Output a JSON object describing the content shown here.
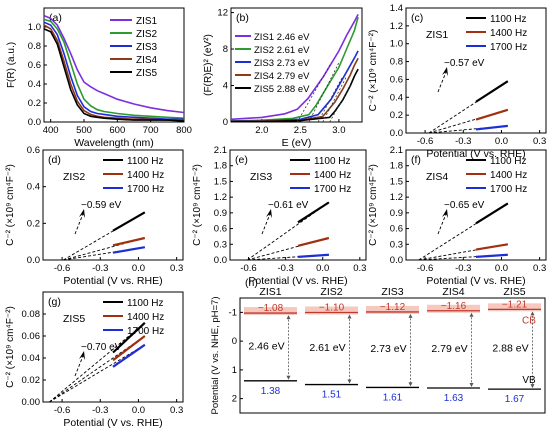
{
  "figure": {
    "colors": {
      "zis1": "#7b2fe0",
      "zis2": "#2f9a2f",
      "zis3": "#1c2fd6",
      "zis4": "#8b3a1a",
      "zis5": "#000000",
      "hz1100": "#000000",
      "hz1400": "#a0300f",
      "hz1700": "#1c2fd6",
      "cb_fill": "#f6c9c0",
      "cb_value": "#c0392b",
      "vb_value": "#1c2fd6"
    }
  },
  "chart_data": [
    {
      "panel": "(a)",
      "type": "line",
      "xlabel": "Wavelength (nm)",
      "ylabel": "F(R) (a.u.)",
      "xlim": [
        380,
        800
      ],
      "ylim": [
        0,
        1.2
      ],
      "xticks": [
        "400",
        "500",
        "600",
        "700",
        "800"
      ],
      "yticks": [
        "0.0",
        "0.2",
        "0.4",
        "0.6",
        "0.8",
        "1.0"
      ],
      "legend_position": "top-right",
      "series": [
        {
          "name": "ZIS1",
          "x": [
            380,
            400,
            420,
            440,
            460,
            480,
            500,
            520,
            540,
            560,
            600,
            650,
            700,
            750,
            800
          ],
          "y": [
            1.12,
            1.09,
            1.02,
            0.88,
            0.72,
            0.55,
            0.42,
            0.37,
            0.33,
            0.3,
            0.24,
            0.19,
            0.15,
            0.12,
            0.1
          ]
        },
        {
          "name": "ZIS2",
          "x": [
            380,
            400,
            420,
            440,
            460,
            480,
            500,
            520,
            540,
            560,
            600,
            650,
            700,
            750,
            800
          ],
          "y": [
            1.08,
            1.06,
            0.98,
            0.84,
            0.62,
            0.4,
            0.24,
            0.17,
            0.13,
            0.11,
            0.09,
            0.07,
            0.06,
            0.05,
            0.04
          ]
        },
        {
          "name": "ZIS3",
          "x": [
            380,
            400,
            420,
            440,
            460,
            480,
            500,
            520,
            540,
            560,
            600,
            650,
            700,
            750,
            800
          ],
          "y": [
            1.05,
            1.02,
            0.92,
            0.72,
            0.48,
            0.28,
            0.16,
            0.11,
            0.09,
            0.08,
            0.06,
            0.05,
            0.04,
            0.03,
            0.03
          ]
        },
        {
          "name": "ZIS4",
          "x": [
            380,
            400,
            420,
            440,
            460,
            480,
            500,
            520,
            540,
            560,
            600,
            650,
            700,
            750,
            800
          ],
          "y": [
            1.02,
            0.98,
            0.86,
            0.64,
            0.4,
            0.22,
            0.12,
            0.08,
            0.06,
            0.05,
            0.04,
            0.03,
            0.03,
            0.02,
            0.02
          ]
        },
        {
          "name": "ZIS5",
          "x": [
            380,
            400,
            420,
            440,
            460,
            480,
            500,
            520,
            540,
            560,
            600,
            650,
            700,
            750,
            800
          ],
          "y": [
            0.98,
            0.95,
            0.82,
            0.58,
            0.34,
            0.18,
            0.09,
            0.06,
            0.05,
            0.04,
            0.03,
            0.02,
            0.02,
            0.02,
            0.01
          ]
        }
      ]
    },
    {
      "panel": "(b)",
      "type": "line",
      "xlabel": "E (eV)",
      "ylabel": "(F(R)E)² (eV²)",
      "xlim": [
        1.6,
        3.3
      ],
      "ylim": [
        0,
        12.5
      ],
      "xticks": [
        "2.0",
        "2.5",
        "3.0"
      ],
      "yticks": [
        "0",
        "4",
        "8",
        "12"
      ],
      "legend_position": "top-left",
      "series": [
        {
          "name": "ZIS1 2.46 eV",
          "x": [
            1.6,
            2.0,
            2.3,
            2.46,
            2.6,
            2.8,
            3.0,
            3.1,
            3.2,
            3.25
          ],
          "y": [
            0.3,
            0.5,
            0.9,
            1.4,
            2.6,
            5.0,
            7.8,
            9.5,
            11.0,
            11.8
          ]
        },
        {
          "name": "ZIS2 2.61 eV",
          "x": [
            1.6,
            2.0,
            2.4,
            2.61,
            2.7,
            2.8,
            3.0,
            3.1,
            3.2,
            3.25
          ],
          "y": [
            0.1,
            0.2,
            0.4,
            0.8,
            1.8,
            3.2,
            6.0,
            8.0,
            10.0,
            11.5
          ]
        },
        {
          "name": "ZIS3 2.73 eV",
          "x": [
            1.6,
            2.0,
            2.5,
            2.73,
            2.8,
            2.9,
            3.0,
            3.1,
            3.2,
            3.25
          ],
          "y": [
            0.1,
            0.1,
            0.3,
            0.8,
            1.5,
            2.5,
            4.0,
            5.5,
            7.0,
            7.8
          ]
        },
        {
          "name": "ZIS4 2.79 eV",
          "x": [
            1.6,
            2.0,
            2.5,
            2.79,
            2.85,
            2.95,
            3.05,
            3.15,
            3.2,
            3.25
          ],
          "y": [
            0.05,
            0.1,
            0.2,
            0.6,
            1.2,
            2.2,
            3.6,
            5.2,
            6.2,
            7.0
          ]
        },
        {
          "name": "ZIS5 2.88 eV",
          "x": [
            1.6,
            2.0,
            2.5,
            2.88,
            2.95,
            3.05,
            3.15,
            3.2,
            3.25
          ],
          "y": [
            0.05,
            0.05,
            0.15,
            0.5,
            1.2,
            2.4,
            4.0,
            5.0,
            5.8
          ]
        }
      ]
    },
    {
      "panel": "(c)",
      "type": "line",
      "sample": "ZIS1",
      "annotation": "−0.57 eV",
      "intercept": -0.57,
      "xlabel": "Potential (V vs. RHE)",
      "ylabel": "C⁻² (×10⁹ cm⁴F⁻²)",
      "xlim": [
        -0.75,
        0.35
      ],
      "ylim": [
        0,
        1.4
      ],
      "xticks": [
        "-0.6",
        "-0.3",
        "0.0",
        "0.3"
      ],
      "yticks": [
        "0.0",
        "0.2",
        "0.4",
        "0.6",
        "0.8",
        "1.0",
        "1.2",
        "1.4"
      ],
      "legend_position": "top-right",
      "series": [
        {
          "name": "1100 Hz",
          "x": [
            -0.2,
            0.05
          ],
          "y": [
            0.35,
            0.58
          ]
        },
        {
          "name": "1400 Hz",
          "x": [
            -0.2,
            0.05
          ],
          "y": [
            0.15,
            0.26
          ]
        },
        {
          "name": "1700 Hz",
          "x": [
            -0.2,
            0.05
          ],
          "y": [
            0.04,
            0.08
          ]
        }
      ]
    },
    {
      "panel": "(d)",
      "type": "line",
      "sample": "ZIS2",
      "annotation": "−0.59 eV",
      "intercept": -0.59,
      "xlabel": "Potential (V vs. RHE)",
      "ylabel": "C⁻² (×10⁹ cm⁴F⁻²)",
      "xlim": [
        -0.75,
        0.35
      ],
      "ylim": [
        0,
        0.6
      ],
      "xticks": [
        "-0.6",
        "-0.3",
        "0.0",
        "0.3"
      ],
      "yticks": [
        "0.0",
        "0.2",
        "0.4",
        "0.6"
      ],
      "legend_position": "top-right",
      "series": [
        {
          "name": "1100 Hz",
          "x": [
            -0.2,
            0.05
          ],
          "y": [
            0.16,
            0.26
          ]
        },
        {
          "name": "1400 Hz",
          "x": [
            -0.2,
            0.05
          ],
          "y": [
            0.08,
            0.12
          ]
        },
        {
          "name": "1700 Hz",
          "x": [
            -0.2,
            0.05
          ],
          "y": [
            0.04,
            0.07
          ]
        }
      ]
    },
    {
      "panel": "(e)",
      "type": "line",
      "sample": "ZIS3",
      "annotation": "−0.61 eV",
      "intercept": -0.61,
      "xlabel": "Potential (V vs. RHE)",
      "ylabel": "C⁻² (×10⁹ cm⁴F⁻²)",
      "xlim": [
        -0.75,
        0.35
      ],
      "ylim": [
        0,
        2.1
      ],
      "xticks": [
        "-0.6",
        "-0.3",
        "0.0",
        "0.3"
      ],
      "yticks": [
        "0.0",
        "0.3",
        "0.6",
        "0.9",
        "1.2",
        "1.5",
        "1.8",
        "2.1"
      ],
      "legend_position": "top-right",
      "series": [
        {
          "name": "1100 Hz",
          "x": [
            -0.2,
            0.05
          ],
          "y": [
            0.72,
            1.1
          ]
        },
        {
          "name": "1400 Hz",
          "x": [
            -0.2,
            0.05
          ],
          "y": [
            0.27,
            0.42
          ]
        },
        {
          "name": "1700 Hz",
          "x": [
            -0.2,
            0.05
          ],
          "y": [
            0.06,
            0.1
          ]
        }
      ]
    },
    {
      "panel": "(f)",
      "type": "line",
      "sample": "ZIS4",
      "annotation": "−0.65 eV",
      "intercept": -0.65,
      "xlabel": "Potential (V vs. RHE)",
      "ylabel": "C⁻² (×10⁹ cm⁴F⁻²)",
      "xlim": [
        -0.75,
        0.35
      ],
      "ylim": [
        0,
        2.1
      ],
      "xticks": [
        "-0.6",
        "-0.3",
        "0.0",
        "0.3"
      ],
      "yticks": [
        "0.0",
        "0.3",
        "0.6",
        "0.9",
        "1.2",
        "1.5",
        "1.8",
        "2.1"
      ],
      "legend_position": "top-right",
      "series": [
        {
          "name": "1100 Hz",
          "x": [
            -0.2,
            0.05
          ],
          "y": [
            0.7,
            1.08
          ]
        },
        {
          "name": "1400 Hz",
          "x": [
            -0.2,
            0.05
          ],
          "y": [
            0.2,
            0.3
          ]
        },
        {
          "name": "1700 Hz",
          "x": [
            -0.2,
            0.05
          ],
          "y": [
            0.06,
            0.1
          ]
        }
      ]
    },
    {
      "panel": "(g)",
      "type": "line",
      "sample": "ZIS5",
      "annotation": "−0.70 eV",
      "intercept": -0.7,
      "xlabel": "Potential (V vs. RHE)",
      "ylabel": "C⁻² (×10⁹ cm⁴F⁻²)",
      "xlim": [
        -0.75,
        0.35
      ],
      "ylim": [
        0,
        0.1
      ],
      "xticks": [
        "-0.6",
        "-0.3",
        "0.0",
        "0.3"
      ],
      "yticks": [
        "0.00",
        "0.02",
        "0.04",
        "0.06",
        "0.08"
      ],
      "legend_position": "top-right",
      "series": [
        {
          "name": "1100 Hz",
          "x": [
            -0.2,
            0.05
          ],
          "y": [
            0.045,
            0.072
          ]
        },
        {
          "name": "1400 Hz",
          "x": [
            -0.2,
            0.05
          ],
          "y": [
            0.038,
            0.06
          ]
        },
        {
          "name": "1700 Hz",
          "x": [
            -0.2,
            0.05
          ],
          "y": [
            0.032,
            0.052
          ]
        }
      ]
    },
    {
      "panel": "(h)",
      "type": "bar",
      "ylabel": "Potential (V vs. NHE, pH=7)",
      "ylim": [
        -1.5,
        2.5
      ],
      "yticks": [
        "-1",
        "0",
        "1",
        "2"
      ],
      "categories": [
        "ZIS1",
        "ZIS2",
        "ZIS3",
        "ZIS4",
        "ZIS5"
      ],
      "cb": [
        -1.08,
        -1.1,
        -1.12,
        -1.16,
        -1.21
      ],
      "cb_labels": [
        "−1.08",
        "−1.10",
        "−1.12",
        "−1.16",
        "−1.21"
      ],
      "vb": [
        1.38,
        1.51,
        1.61,
        1.63,
        1.67
      ],
      "vb_labels": [
        "1.38",
        "1.51",
        "1.61",
        "1.63",
        "1.67"
      ],
      "gap_labels": [
        "2.46 eV",
        "2.61 eV",
        "2.73 eV",
        "2.79 eV",
        "2.88 eV"
      ],
      "cb_text": "CB",
      "vb_text": "VB"
    }
  ]
}
